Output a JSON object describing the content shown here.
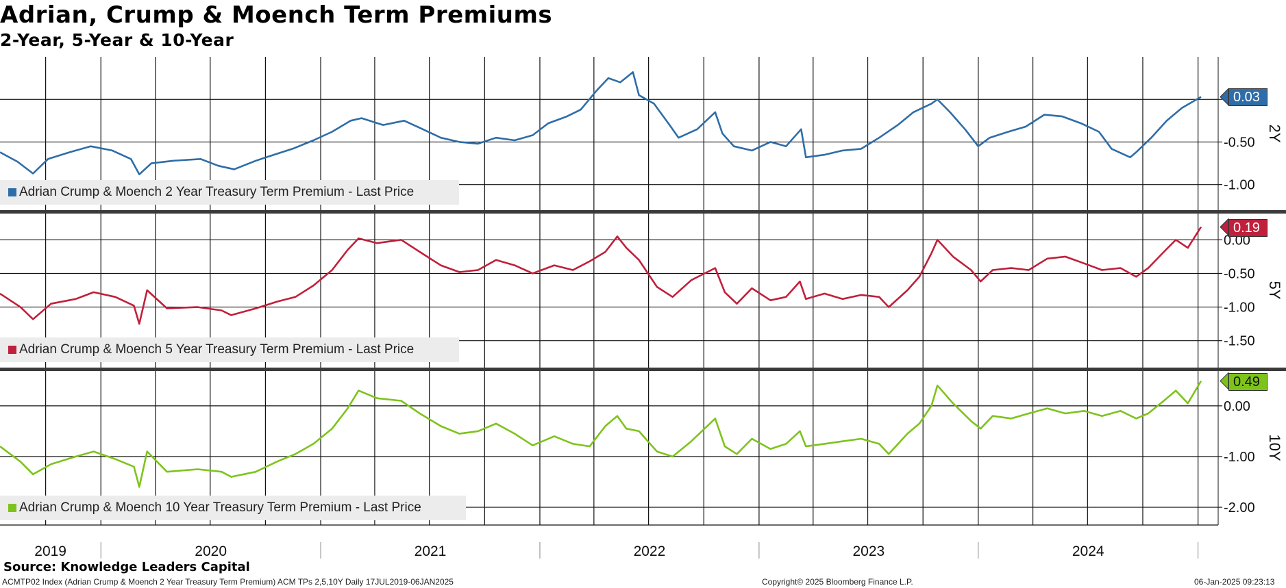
{
  "title": "Adrian, Crump & Moench Term Premiums",
  "subtitle": "2-Year, 5-Year & 10-Year",
  "source": "Source: Knowledge Leaders Capital",
  "footer": {
    "left": "ACMTP02 Index (Adrian Crump & Moench 2 Year Treasury Term Premium) ACM TPs 2,5,10Y  Daily 17JUL2019-06JAN2025",
    "center": "Copyright© 2025 Bloomberg Finance L.P.",
    "right": "06-Jan-2025 09:23:13"
  },
  "chart_data": {
    "type": "line",
    "x_range": [
      "2019-07-17",
      "2025-01-06"
    ],
    "x_tick_labels": [
      "2019",
      "2020",
      "2021",
      "2022",
      "2023",
      "2024"
    ],
    "grid": true,
    "legend_placement": "bottom-left",
    "panels": [
      {
        "id": "2Y",
        "axis_label": "2Y",
        "color": "#2e6da8",
        "last_value": "0.03",
        "legend": "Adrian Crump & Moench 2 Year Treasury Term Premium - Last Price",
        "ylim": [
          -1.3,
          0.5
        ],
        "y_ticks": [
          {
            "v": 0.0,
            "label": ""
          },
          {
            "v": -0.5,
            "label": "-0.50"
          },
          {
            "v": -1.0,
            "label": "-1.00"
          }
        ],
        "points": [
          [
            "2019-07-17",
            -0.62
          ],
          [
            "2019-08-15",
            -0.73
          ],
          [
            "2019-09-10",
            -0.87
          ],
          [
            "2019-10-05",
            -0.7
          ],
          [
            "2019-11-10",
            -0.62
          ],
          [
            "2019-12-15",
            -0.55
          ],
          [
            "2020-01-20",
            -0.6
          ],
          [
            "2020-02-20",
            -0.7
          ],
          [
            "2020-03-05",
            -0.88
          ],
          [
            "2020-03-25",
            -0.75
          ],
          [
            "2020-05-01",
            -0.72
          ],
          [
            "2020-06-15",
            -0.7
          ],
          [
            "2020-07-15",
            -0.78
          ],
          [
            "2020-08-10",
            -0.82
          ],
          [
            "2020-09-15",
            -0.72
          ],
          [
            "2020-10-15",
            -0.65
          ],
          [
            "2020-11-15",
            -0.58
          ],
          [
            "2020-12-20",
            -0.48
          ],
          [
            "2021-01-20",
            -0.38
          ],
          [
            "2021-02-20",
            -0.25
          ],
          [
            "2021-03-10",
            -0.22
          ],
          [
            "2021-04-15",
            -0.3
          ],
          [
            "2021-05-20",
            -0.25
          ],
          [
            "2021-06-20",
            -0.35
          ],
          [
            "2021-07-20",
            -0.45
          ],
          [
            "2021-08-20",
            -0.5
          ],
          [
            "2021-09-20",
            -0.52
          ],
          [
            "2021-10-20",
            -0.45
          ],
          [
            "2021-11-20",
            -0.48
          ],
          [
            "2021-12-20",
            -0.42
          ],
          [
            "2022-01-15",
            -0.28
          ],
          [
            "2022-02-15",
            -0.2
          ],
          [
            "2022-03-10",
            -0.12
          ],
          [
            "2022-04-05",
            0.1
          ],
          [
            "2022-04-25",
            0.25
          ],
          [
            "2022-05-15",
            0.2
          ],
          [
            "2022-06-05",
            0.32
          ],
          [
            "2022-06-15",
            0.05
          ],
          [
            "2022-07-10",
            -0.05
          ],
          [
            "2022-08-05",
            -0.3
          ],
          [
            "2022-08-20",
            -0.45
          ],
          [
            "2022-09-20",
            -0.35
          ],
          [
            "2022-10-20",
            -0.15
          ],
          [
            "2022-11-01",
            -0.4
          ],
          [
            "2022-11-20",
            -0.55
          ],
          [
            "2022-12-20",
            -0.6
          ],
          [
            "2023-01-20",
            -0.5
          ],
          [
            "2023-02-15",
            -0.55
          ],
          [
            "2023-03-12",
            -0.35
          ],
          [
            "2023-03-20",
            -0.68
          ],
          [
            "2023-04-20",
            -0.65
          ],
          [
            "2023-05-20",
            -0.6
          ],
          [
            "2023-06-20",
            -0.58
          ],
          [
            "2023-07-20",
            -0.45
          ],
          [
            "2023-08-20",
            -0.3
          ],
          [
            "2023-09-15",
            -0.15
          ],
          [
            "2023-10-15",
            -0.05
          ],
          [
            "2023-10-25",
            0.0
          ],
          [
            "2023-11-15",
            -0.15
          ],
          [
            "2023-12-10",
            -0.35
          ],
          [
            "2024-01-01",
            -0.55
          ],
          [
            "2024-01-20",
            -0.45
          ],
          [
            "2024-02-20",
            -0.38
          ],
          [
            "2024-03-20",
            -0.32
          ],
          [
            "2024-04-20",
            -0.18
          ],
          [
            "2024-05-20",
            -0.2
          ],
          [
            "2024-06-20",
            -0.28
          ],
          [
            "2024-07-20",
            -0.38
          ],
          [
            "2024-08-10",
            -0.58
          ],
          [
            "2024-09-10",
            -0.68
          ],
          [
            "2024-09-20",
            -0.62
          ],
          [
            "2024-10-15",
            -0.45
          ],
          [
            "2024-11-10",
            -0.25
          ],
          [
            "2024-12-05",
            -0.1
          ],
          [
            "2025-01-06",
            0.03
          ]
        ]
      },
      {
        "id": "5Y",
        "axis_label": "5Y",
        "color": "#c0203b",
        "last_value": "0.19",
        "legend": "Adrian Crump & Moench 5 Year Treasury Term Premium - Last Price",
        "ylim": [
          -1.9,
          0.4
        ],
        "y_ticks": [
          {
            "v": 0.0,
            "label": "0.00"
          },
          {
            "v": -0.5,
            "label": "-0.50"
          },
          {
            "v": -1.0,
            "label": "-1.00"
          },
          {
            "v": -1.5,
            "label": "-1.50"
          }
        ],
        "points": [
          [
            "2019-07-17",
            -0.8
          ],
          [
            "2019-08-20",
            -1.0
          ],
          [
            "2019-09-10",
            -1.18
          ],
          [
            "2019-10-10",
            -0.95
          ],
          [
            "2019-11-20",
            -0.88
          ],
          [
            "2019-12-20",
            -0.78
          ],
          [
            "2020-01-25",
            -0.85
          ],
          [
            "2020-02-25",
            -0.98
          ],
          [
            "2020-03-05",
            -1.25
          ],
          [
            "2020-03-18",
            -0.75
          ],
          [
            "2020-04-20",
            -1.02
          ],
          [
            "2020-06-10",
            -1.0
          ],
          [
            "2020-07-20",
            -1.05
          ],
          [
            "2020-08-05",
            -1.12
          ],
          [
            "2020-09-15",
            -1.02
          ],
          [
            "2020-10-20",
            -0.92
          ],
          [
            "2020-11-20",
            -0.85
          ],
          [
            "2020-12-20",
            -0.68
          ],
          [
            "2021-01-20",
            -0.45
          ],
          [
            "2021-02-15",
            -0.15
          ],
          [
            "2021-03-05",
            0.02
          ],
          [
            "2021-04-05",
            -0.05
          ],
          [
            "2021-05-15",
            0.0
          ],
          [
            "2021-06-15",
            -0.18
          ],
          [
            "2021-07-20",
            -0.38
          ],
          [
            "2021-08-20",
            -0.48
          ],
          [
            "2021-09-20",
            -0.45
          ],
          [
            "2021-10-20",
            -0.3
          ],
          [
            "2021-11-20",
            -0.38
          ],
          [
            "2021-12-20",
            -0.5
          ],
          [
            "2022-01-25",
            -0.38
          ],
          [
            "2022-02-25",
            -0.45
          ],
          [
            "2022-03-25",
            -0.32
          ],
          [
            "2022-04-20",
            -0.18
          ],
          [
            "2022-05-10",
            0.05
          ],
          [
            "2022-05-25",
            -0.12
          ],
          [
            "2022-06-15",
            -0.3
          ],
          [
            "2022-07-15",
            -0.7
          ],
          [
            "2022-08-10",
            -0.85
          ],
          [
            "2022-09-10",
            -0.6
          ],
          [
            "2022-10-20",
            -0.42
          ],
          [
            "2022-11-05",
            -0.78
          ],
          [
            "2022-11-25",
            -0.95
          ],
          [
            "2022-12-20",
            -0.72
          ],
          [
            "2023-01-20",
            -0.9
          ],
          [
            "2023-02-15",
            -0.85
          ],
          [
            "2023-03-10",
            -0.62
          ],
          [
            "2023-03-20",
            -0.88
          ],
          [
            "2023-04-20",
            -0.8
          ],
          [
            "2023-05-20",
            -0.88
          ],
          [
            "2023-06-20",
            -0.82
          ],
          [
            "2023-07-20",
            -0.85
          ],
          [
            "2023-08-05",
            -1.0
          ],
          [
            "2023-09-05",
            -0.75
          ],
          [
            "2023-09-25",
            -0.55
          ],
          [
            "2023-10-15",
            -0.2
          ],
          [
            "2023-10-25",
            0.0
          ],
          [
            "2023-11-20",
            -0.25
          ],
          [
            "2023-12-20",
            -0.45
          ],
          [
            "2024-01-05",
            -0.62
          ],
          [
            "2024-01-25",
            -0.45
          ],
          [
            "2024-02-25",
            -0.42
          ],
          [
            "2024-03-25",
            -0.45
          ],
          [
            "2024-04-25",
            -0.28
          ],
          [
            "2024-05-25",
            -0.25
          ],
          [
            "2024-06-25",
            -0.35
          ],
          [
            "2024-07-25",
            -0.45
          ],
          [
            "2024-08-25",
            -0.42
          ],
          [
            "2024-09-20",
            -0.55
          ],
          [
            "2024-10-10",
            -0.42
          ],
          [
            "2024-11-05",
            -0.18
          ],
          [
            "2024-11-25",
            0.0
          ],
          [
            "2024-12-15",
            -0.12
          ],
          [
            "2025-01-06",
            0.19
          ]
        ]
      },
      {
        "id": "10Y",
        "axis_label": "10Y",
        "color": "#7ec31c",
        "last_value": "0.49",
        "legend": "Adrian Crump & Moench 10 Year Treasury Term Premium - Last Price",
        "ylim": [
          -2.35,
          0.7
        ],
        "y_ticks": [
          {
            "v": 0.0,
            "label": "0.00"
          },
          {
            "v": -1.0,
            "label": "-1.00"
          },
          {
            "v": -2.0,
            "label": "-2.00"
          }
        ],
        "points": [
          [
            "2019-07-17",
            -0.8
          ],
          [
            "2019-08-20",
            -1.1
          ],
          [
            "2019-09-10",
            -1.35
          ],
          [
            "2019-10-10",
            -1.15
          ],
          [
            "2019-11-20",
            -1.0
          ],
          [
            "2019-12-20",
            -0.9
          ],
          [
            "2020-01-25",
            -1.05
          ],
          [
            "2020-02-25",
            -1.2
          ],
          [
            "2020-03-05",
            -1.6
          ],
          [
            "2020-03-18",
            -0.9
          ],
          [
            "2020-04-20",
            -1.3
          ],
          [
            "2020-06-10",
            -1.25
          ],
          [
            "2020-07-20",
            -1.3
          ],
          [
            "2020-08-05",
            -1.4
          ],
          [
            "2020-09-15",
            -1.3
          ],
          [
            "2020-10-20",
            -1.1
          ],
          [
            "2020-11-20",
            -0.95
          ],
          [
            "2020-12-20",
            -0.75
          ],
          [
            "2021-01-20",
            -0.45
          ],
          [
            "2021-02-15",
            -0.05
          ],
          [
            "2021-03-05",
            0.3
          ],
          [
            "2021-04-05",
            0.15
          ],
          [
            "2021-05-15",
            0.1
          ],
          [
            "2021-06-15",
            -0.15
          ],
          [
            "2021-07-20",
            -0.4
          ],
          [
            "2021-08-20",
            -0.55
          ],
          [
            "2021-09-20",
            -0.5
          ],
          [
            "2021-10-20",
            -0.35
          ],
          [
            "2021-11-20",
            -0.55
          ],
          [
            "2021-12-20",
            -0.78
          ],
          [
            "2022-01-25",
            -0.6
          ],
          [
            "2022-02-25",
            -0.75
          ],
          [
            "2022-03-25",
            -0.8
          ],
          [
            "2022-04-20",
            -0.4
          ],
          [
            "2022-05-10",
            -0.2
          ],
          [
            "2022-05-25",
            -0.45
          ],
          [
            "2022-06-15",
            -0.5
          ],
          [
            "2022-07-15",
            -0.9
          ],
          [
            "2022-08-10",
            -1.0
          ],
          [
            "2022-09-10",
            -0.7
          ],
          [
            "2022-10-20",
            -0.25
          ],
          [
            "2022-11-05",
            -0.8
          ],
          [
            "2022-11-25",
            -0.95
          ],
          [
            "2022-12-20",
            -0.65
          ],
          [
            "2023-01-20",
            -0.85
          ],
          [
            "2023-02-15",
            -0.75
          ],
          [
            "2023-03-10",
            -0.5
          ],
          [
            "2023-03-20",
            -0.8
          ],
          [
            "2023-04-20",
            -0.75
          ],
          [
            "2023-05-20",
            -0.7
          ],
          [
            "2023-06-20",
            -0.65
          ],
          [
            "2023-07-20",
            -0.75
          ],
          [
            "2023-08-05",
            -0.95
          ],
          [
            "2023-09-05",
            -0.55
          ],
          [
            "2023-09-25",
            -0.35
          ],
          [
            "2023-10-15",
            0.0
          ],
          [
            "2023-10-25",
            0.4
          ],
          [
            "2023-11-20",
            0.05
          ],
          [
            "2023-12-20",
            -0.3
          ],
          [
            "2024-01-05",
            -0.45
          ],
          [
            "2024-01-25",
            -0.2
          ],
          [
            "2024-02-25",
            -0.25
          ],
          [
            "2024-03-25",
            -0.15
          ],
          [
            "2024-04-25",
            -0.05
          ],
          [
            "2024-05-25",
            -0.15
          ],
          [
            "2024-06-25",
            -0.1
          ],
          [
            "2024-07-25",
            -0.2
          ],
          [
            "2024-08-25",
            -0.1
          ],
          [
            "2024-09-20",
            -0.25
          ],
          [
            "2024-10-10",
            -0.15
          ],
          [
            "2024-11-05",
            0.1
          ],
          [
            "2024-11-25",
            0.3
          ],
          [
            "2024-12-15",
            0.05
          ],
          [
            "2025-01-06",
            0.49
          ]
        ]
      }
    ]
  }
}
